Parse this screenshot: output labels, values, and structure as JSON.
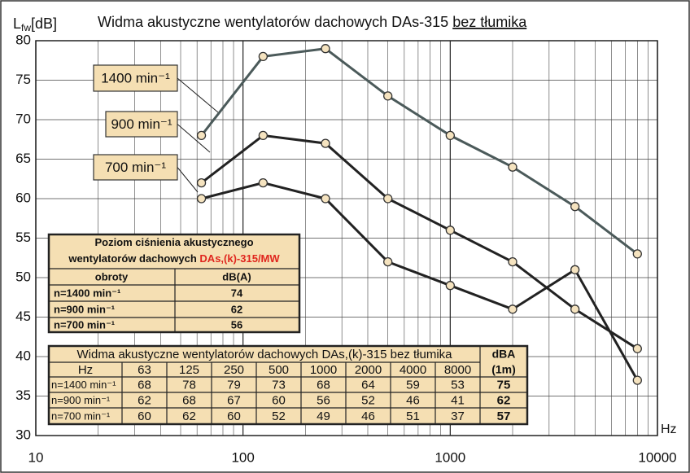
{
  "chart_data": {
    "type": "line",
    "title": "Widma akustyczne wentylatorów dachowych DAs-315 ",
    "title_underlined": "bez tłumika",
    "y_label": "L",
    "y_label_sub": "fw",
    "y_label_unit": "[dB]",
    "x_label": "Hz",
    "log_x": true,
    "grid": true,
    "xlim": [
      10,
      10000
    ],
    "ylim": [
      30,
      80
    ],
    "xticks": [
      10,
      100,
      1000,
      10000
    ],
    "yticks": [
      30,
      35,
      40,
      45,
      50,
      55,
      60,
      65,
      70,
      75,
      80
    ],
    "x": [
      63,
      125,
      250,
      500,
      1000,
      2000,
      4000,
      8000
    ],
    "series": [
      {
        "name": "1400 min⁻¹",
        "color": "#4b5a5a",
        "values": [
          68,
          78,
          79,
          73,
          68,
          64,
          59,
          53
        ]
      },
      {
        "name": "900 min⁻¹",
        "color": "#222222",
        "values": [
          62,
          68,
          67,
          60,
          56,
          52,
          46,
          41
        ]
      },
      {
        "name": "700 min⁻¹",
        "color": "#222222",
        "values": [
          60,
          62,
          60,
          52,
          49,
          46,
          51,
          37
        ]
      }
    ],
    "table1": {
      "title": [
        "Poziom ciśnienia akustycznego",
        "wentylatorów dachowych ",
        "DAs,(k)-315/MW"
      ],
      "headers": [
        "obroty",
        "dB(A)"
      ],
      "rows": [
        [
          "n=1400 min⁻¹",
          74
        ],
        [
          "n=900 min⁻¹",
          62
        ],
        [
          "n=700 min⁻¹",
          56
        ]
      ]
    },
    "table2": {
      "title": "Widma akustyczne wentylatorów dachowych DAs,(k)-315 bez tłumika",
      "hz_label": "Hz",
      "dba_header": [
        "dBA",
        "(1m)"
      ],
      "row_labels": [
        "n=1400 min⁻¹",
        "n=900 min⁻¹",
        "n=700 min⁻¹"
      ],
      "dba": [
        75,
        62,
        57
      ]
    }
  }
}
